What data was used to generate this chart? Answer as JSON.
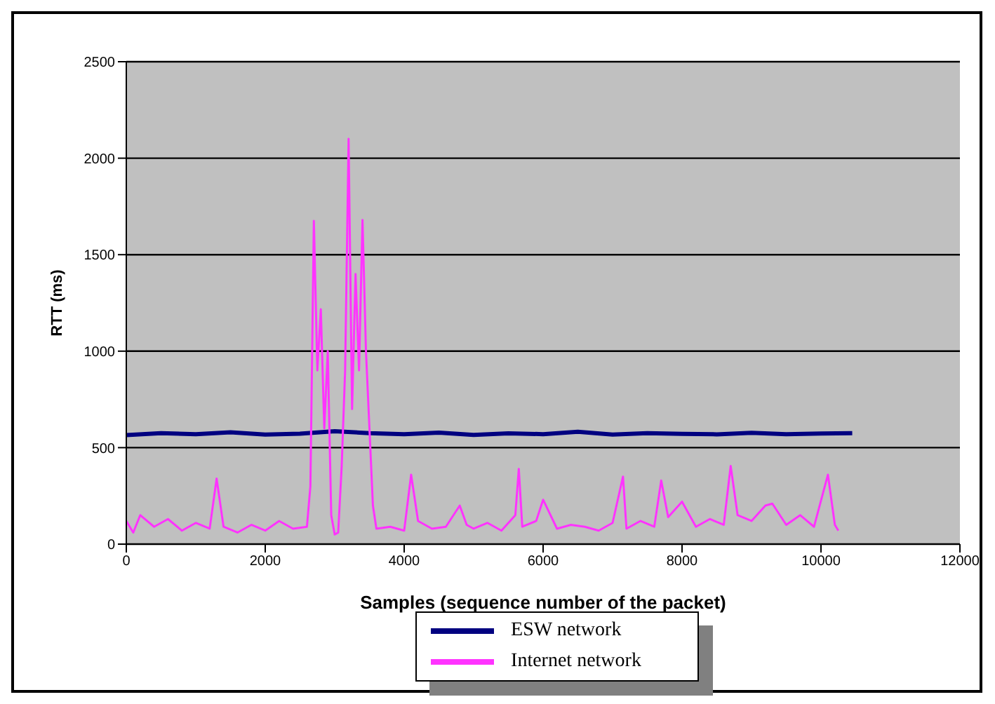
{
  "chart_data": {
    "type": "line",
    "xlabel": "Samples (sequence number of the packet)",
    "ylabel": "RTT (ms)",
    "xlim": [
      0,
      12000
    ],
    "xticks": [
      0,
      2000,
      4000,
      6000,
      8000,
      10000,
      12000
    ],
    "ylim": [
      0,
      2500
    ],
    "yticks": [
      0,
      500,
      1000,
      1500,
      2000,
      2500
    ],
    "grid": "y",
    "legend": "bottom",
    "marker": "none",
    "line_style": "solid",
    "series": [
      {
        "name": "ESW network",
        "color": "#000080",
        "x": [
          0,
          500,
          1000,
          1500,
          2000,
          2500,
          3000,
          3500,
          4000,
          4500,
          5000,
          5500,
          6000,
          6500,
          7000,
          7500,
          8000,
          8500,
          9000,
          9500,
          10000,
          10450
        ],
        "values": [
          565,
          575,
          570,
          580,
          568,
          572,
          585,
          575,
          570,
          578,
          566,
          574,
          570,
          582,
          568,
          575,
          571,
          569,
          577,
          570,
          573,
          575
        ]
      },
      {
        "name": "Internet network",
        "color": "#ff33ff",
        "x": [
          0,
          100,
          200,
          400,
          600,
          800,
          1000,
          1200,
          1300,
          1400,
          1600,
          1800,
          2000,
          2200,
          2400,
          2600,
          2650,
          2700,
          2750,
          2800,
          2850,
          2900,
          2950,
          3000,
          3050,
          3100,
          3150,
          3200,
          3250,
          3300,
          3350,
          3400,
          3450,
          3500,
          3550,
          3600,
          3800,
          4000,
          4100,
          4200,
          4400,
          4600,
          4800,
          4900,
          5000,
          5200,
          5400,
          5600,
          5650,
          5700,
          5900,
          6000,
          6200,
          6400,
          6600,
          6800,
          7000,
          7150,
          7200,
          7400,
          7600,
          7700,
          7800,
          8000,
          8200,
          8400,
          8600,
          8700,
          8800,
          9000,
          9200,
          9300,
          9500,
          9700,
          9900,
          10100,
          10200,
          10250
        ],
        "values": [
          120,
          60,
          150,
          90,
          130,
          70,
          110,
          80,
          340,
          90,
          60,
          100,
          70,
          120,
          80,
          90,
          300,
          1675,
          900,
          1217,
          600,
          1000,
          150,
          50,
          60,
          400,
          900,
          2100,
          700,
          1400,
          900,
          1680,
          1000,
          600,
          200,
          80,
          90,
          70,
          360,
          120,
          80,
          90,
          200,
          100,
          80,
          110,
          70,
          150,
          390,
          90,
          120,
          230,
          80,
          100,
          90,
          70,
          110,
          350,
          80,
          120,
          90,
          330,
          140,
          220,
          90,
          130,
          100,
          405,
          150,
          120,
          200,
          210,
          100,
          150,
          90,
          360,
          100,
          70
        ]
      }
    ]
  }
}
